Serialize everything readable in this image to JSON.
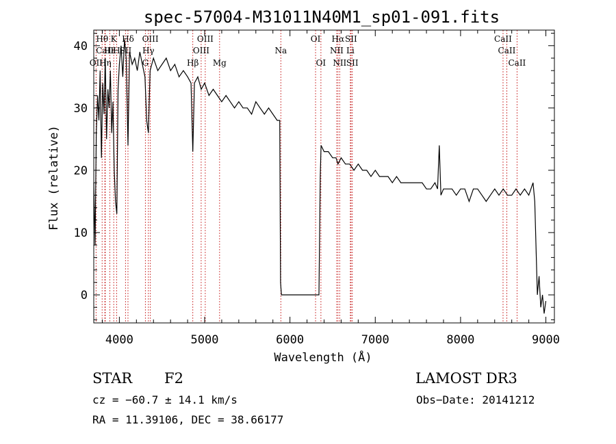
{
  "chart_data": {
    "type": "line",
    "title": "spec-57004-M31011N40M1_sp01-091.fits",
    "xlabel": "Wavelength (Å)",
    "ylabel": "Flux (relative)",
    "xlim": [
      3700,
      9100
    ],
    "ylim": [
      -4.5,
      42.5
    ],
    "x_ticks": [
      4000,
      5000,
      6000,
      7000,
      8000,
      9000
    ],
    "y_ticks": [
      0,
      10,
      20,
      30,
      40
    ],
    "series": [
      {
        "name": "flux",
        "points": [
          [
            3700,
            18
          ],
          [
            3715,
            8
          ],
          [
            3730,
            26
          ],
          [
            3745,
            32
          ],
          [
            3760,
            28
          ],
          [
            3775,
            36
          ],
          [
            3790,
            22
          ],
          [
            3805,
            34
          ],
          [
            3820,
            29
          ],
          [
            3835,
            38
          ],
          [
            3850,
            25
          ],
          [
            3865,
            33
          ],
          [
            3880,
            30
          ],
          [
            3895,
            36
          ],
          [
            3910,
            26
          ],
          [
            3925,
            31
          ],
          [
            3940,
            20
          ],
          [
            3955,
            15
          ],
          [
            3970,
            13
          ],
          [
            3985,
            33
          ],
          [
            4000,
            37
          ],
          [
            4020,
            40
          ],
          [
            4040,
            35
          ],
          [
            4060,
            41
          ],
          [
            4080,
            38
          ],
          [
            4101,
            24
          ],
          [
            4120,
            39
          ],
          [
            4150,
            37
          ],
          [
            4180,
            38
          ],
          [
            4210,
            36
          ],
          [
            4240,
            39
          ],
          [
            4270,
            37
          ],
          [
            4300,
            35
          ],
          [
            4320,
            28
          ],
          [
            4340,
            26
          ],
          [
            4360,
            36
          ],
          [
            4400,
            38
          ],
          [
            4450,
            36
          ],
          [
            4500,
            37
          ],
          [
            4550,
            38
          ],
          [
            4600,
            36
          ],
          [
            4650,
            37
          ],
          [
            4700,
            35
          ],
          [
            4750,
            36
          ],
          [
            4800,
            35
          ],
          [
            4840,
            34
          ],
          [
            4861,
            23
          ],
          [
            4880,
            34
          ],
          [
            4920,
            35
          ],
          [
            4960,
            33
          ],
          [
            5000,
            34
          ],
          [
            5050,
            32
          ],
          [
            5100,
            33
          ],
          [
            5150,
            32
          ],
          [
            5200,
            31
          ],
          [
            5250,
            32
          ],
          [
            5300,
            31
          ],
          [
            5350,
            30
          ],
          [
            5400,
            31
          ],
          [
            5450,
            30
          ],
          [
            5500,
            30
          ],
          [
            5550,
            29
          ],
          [
            5600,
            31
          ],
          [
            5650,
            30
          ],
          [
            5700,
            29
          ],
          [
            5750,
            30
          ],
          [
            5800,
            29
          ],
          [
            5850,
            28
          ],
          [
            5880,
            28
          ],
          [
            5890,
            2
          ],
          [
            5900,
            0
          ],
          [
            6000,
            0
          ],
          [
            6100,
            0
          ],
          [
            6200,
            0
          ],
          [
            6300,
            0
          ],
          [
            6340,
            0
          ],
          [
            6355,
            19
          ],
          [
            6365,
            24
          ],
          [
            6400,
            23
          ],
          [
            6450,
            23
          ],
          [
            6500,
            22
          ],
          [
            6540,
            22
          ],
          [
            6563,
            21
          ],
          [
            6600,
            22
          ],
          [
            6650,
            21
          ],
          [
            6700,
            21
          ],
          [
            6750,
            20
          ],
          [
            6800,
            21
          ],
          [
            6850,
            20
          ],
          [
            6900,
            20
          ],
          [
            6950,
            19
          ],
          [
            7000,
            20
          ],
          [
            7050,
            19
          ],
          [
            7100,
            19
          ],
          [
            7150,
            19
          ],
          [
            7200,
            18
          ],
          [
            7250,
            19
          ],
          [
            7300,
            18
          ],
          [
            7350,
            18
          ],
          [
            7400,
            18
          ],
          [
            7450,
            18
          ],
          [
            7500,
            18
          ],
          [
            7550,
            18
          ],
          [
            7600,
            17
          ],
          [
            7650,
            17
          ],
          [
            7700,
            18
          ],
          [
            7730,
            17
          ],
          [
            7750,
            24
          ],
          [
            7770,
            16
          ],
          [
            7800,
            17
          ],
          [
            7850,
            17
          ],
          [
            7900,
            17
          ],
          [
            7950,
            16
          ],
          [
            8000,
            17
          ],
          [
            8050,
            17
          ],
          [
            8100,
            15
          ],
          [
            8150,
            17
          ],
          [
            8200,
            17
          ],
          [
            8250,
            16
          ],
          [
            8300,
            15
          ],
          [
            8350,
            16
          ],
          [
            8400,
            17
          ],
          [
            8450,
            16
          ],
          [
            8500,
            17
          ],
          [
            8550,
            16
          ],
          [
            8600,
            16
          ],
          [
            8650,
            17
          ],
          [
            8700,
            16
          ],
          [
            8750,
            17
          ],
          [
            8800,
            16
          ],
          [
            8850,
            18
          ],
          [
            8870,
            15
          ],
          [
            8900,
            0
          ],
          [
            8920,
            3
          ],
          [
            8940,
            -2
          ],
          [
            8960,
            0
          ],
          [
            8980,
            -3
          ],
          [
            9000,
            -1
          ]
        ]
      }
    ],
    "spectral_lines": [
      {
        "label": "Hθ",
        "x": 3798,
        "row": 0
      },
      {
        "label": "OII",
        "x": 3727,
        "row": 2
      },
      {
        "label": "Hη",
        "x": 3835,
        "row": 2
      },
      {
        "label": "CaII",
        "x": 3830,
        "row": 1
      },
      {
        "label": "Hε",
        "x": 3889,
        "row": 1
      },
      {
        "label": "K",
        "x": 3934,
        "row": 0
      },
      {
        "label": "H",
        "x": 3968,
        "row": 1
      },
      {
        "label": "Hδ",
        "x": 4101,
        "row": 0
      },
      {
        "label": "SII",
        "x": 4072,
        "row": 1
      },
      {
        "label": "OIII",
        "x": 4363,
        "row": 0
      },
      {
        "label": "Hγ",
        "x": 4340,
        "row": 1
      },
      {
        "label": "G",
        "x": 4305,
        "row": 2
      },
      {
        "label": "Hβ",
        "x": 4861,
        "row": 2
      },
      {
        "label": "OIII",
        "x": 4959,
        "row": 1
      },
      {
        "label": "OIII",
        "x": 5007,
        "row": 0
      },
      {
        "label": "Mg",
        "x": 5175,
        "row": 2
      },
      {
        "label": "Na",
        "x": 5893,
        "row": 1
      },
      {
        "label": "OI",
        "x": 6300,
        "row": 0
      },
      {
        "label": "OI",
        "x": 6363,
        "row": 2
      },
      {
        "label": "Hα",
        "x": 6563,
        "row": 0
      },
      {
        "label": "NII",
        "x": 6548,
        "row": 1
      },
      {
        "label": "NII",
        "x": 6583,
        "row": 2
      },
      {
        "label": "SII",
        "x": 6716,
        "row": 0
      },
      {
        "label": "SII",
        "x": 6731,
        "row": 2
      },
      {
        "label": "Li",
        "x": 6708,
        "row": 1
      },
      {
        "label": "CaII",
        "x": 8498,
        "row": 0
      },
      {
        "label": "CaII",
        "x": 8542,
        "row": 1
      },
      {
        "label": "CaII",
        "x": 8662,
        "row": 2
      }
    ]
  },
  "info": {
    "object_class": "STAR",
    "subclass": "F2",
    "survey": "LAMOST DR3",
    "cz_text": "cz = −60.7 ± 14.1 km/s",
    "obs_date_text": "Obs−Date: 20141212",
    "radec_text": "RA =  11.39106, DEC =  38.66177"
  },
  "colors": {
    "line_marker": "#cc3333",
    "spectrum": "#000000"
  }
}
